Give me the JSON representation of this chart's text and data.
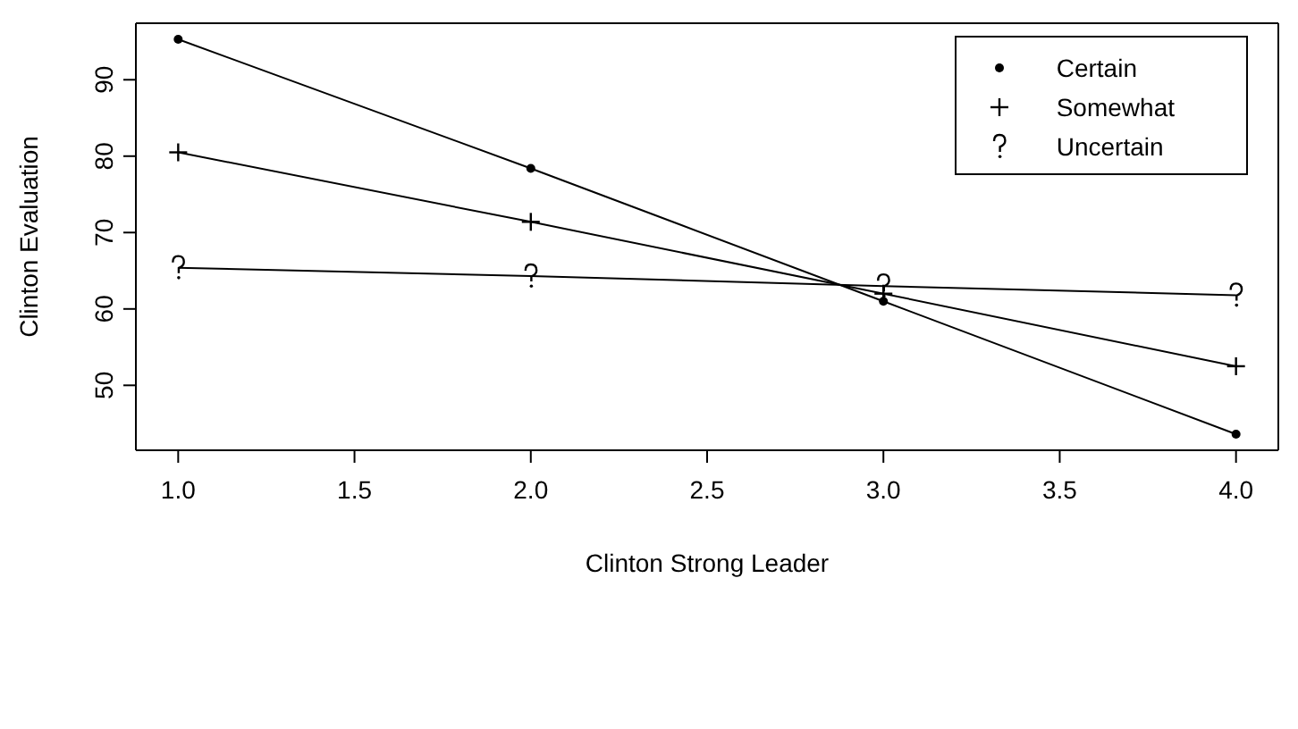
{
  "chart_data": {
    "type": "line",
    "xlabel": "Clinton Strong Leader",
    "ylabel": "Clinton Evaluation",
    "x": [
      1,
      2,
      3,
      4
    ],
    "series": [
      {
        "name": "Certain",
        "color": "#000000",
        "marker": "circle",
        "values": [
          95.3,
          78.4,
          61,
          43.6
        ]
      },
      {
        "name": "Somewhat",
        "color": "#000000",
        "marker": "cross",
        "values": [
          80.5,
          71.4,
          62,
          52.5
        ]
      },
      {
        "name": "Uncertain",
        "color": "#000000",
        "values": [
          65.4,
          64.3,
          63,
          61.8
        ]
      }
    ],
    "xlim": [
      0.88,
      4.12
    ],
    "xticks": [
      {
        "value": 1,
        "label": "1.0"
      },
      {
        "value": 1.5,
        "label": "1.5"
      },
      {
        "value": 2,
        "label": "2.0"
      },
      {
        "value": 2.5,
        "label": "2.5"
      },
      {
        "value": 3,
        "label": "3.0"
      },
      {
        "value": 3.5,
        "label": "3.5"
      },
      {
        "value": 4,
        "label": "4.0"
      }
    ],
    "ylim": [
      41.5,
      97.4
    ],
    "yticks": [
      50,
      60,
      70,
      80,
      90
    ],
    "grid": false,
    "legend": "top right",
    "line_style": "solid"
  }
}
